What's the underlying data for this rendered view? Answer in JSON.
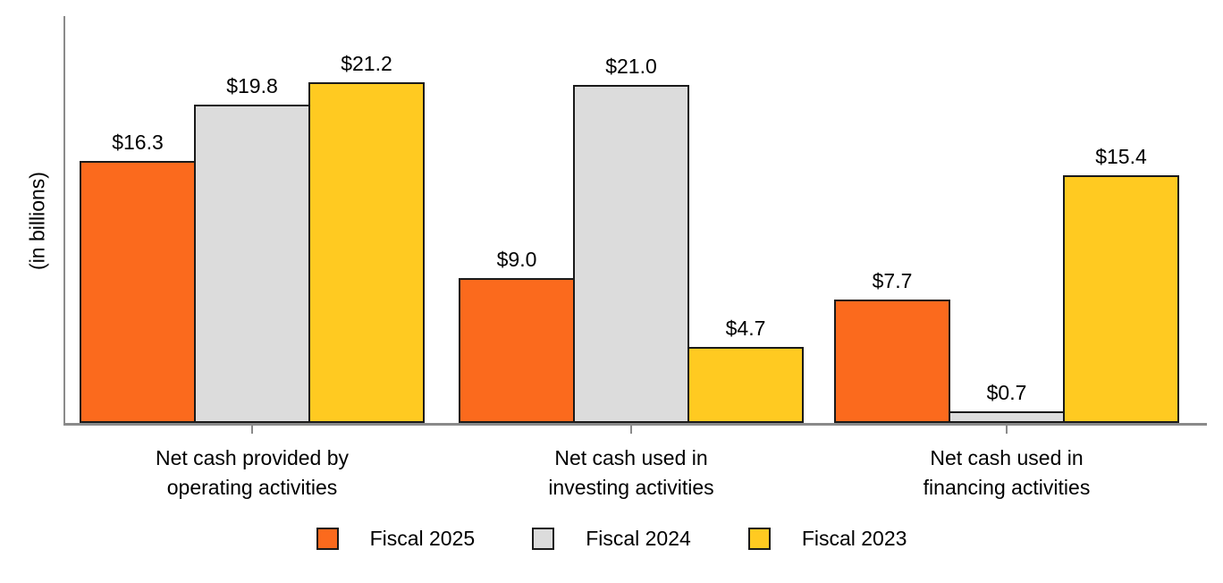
{
  "chart_data": {
    "type": "bar",
    "title": "",
    "ylabel": "(in billions)",
    "xlabel": "",
    "ylim": [
      0,
      25.3
    ],
    "grid": false,
    "legend_position": "bottom",
    "axis_color": "#8A8A8A",
    "bar_border_color": "#1A1A1A",
    "categories": [
      {
        "label": "Net cash provided by operating activities",
        "label_lines": [
          "Net cash provided by",
          "operating activities"
        ]
      },
      {
        "label": "Net cash used in investing activities",
        "label_lines": [
          "Net cash used in",
          "investing activities"
        ]
      },
      {
        "label": "Net cash used in financing activities",
        "label_lines": [
          "Net cash used in",
          "financing activities"
        ]
      }
    ],
    "series": [
      {
        "name": "Fiscal 2025",
        "color": "#FB6A1D",
        "values": [
          16.3,
          9.0,
          7.7
        ],
        "value_labels": [
          "$16.3",
          "$9.0",
          "$7.7"
        ]
      },
      {
        "name": "Fiscal 2024",
        "color": "#DCDCDC",
        "values": [
          19.8,
          21.0,
          0.7
        ],
        "value_labels": [
          "$19.8",
          "$21.0",
          "$0.7"
        ]
      },
      {
        "name": "Fiscal 2023",
        "color": "#FFCA21",
        "values": [
          21.2,
          4.7,
          15.4
        ],
        "value_labels": [
          "$21.2",
          "$4.7",
          "$15.4"
        ]
      }
    ]
  }
}
